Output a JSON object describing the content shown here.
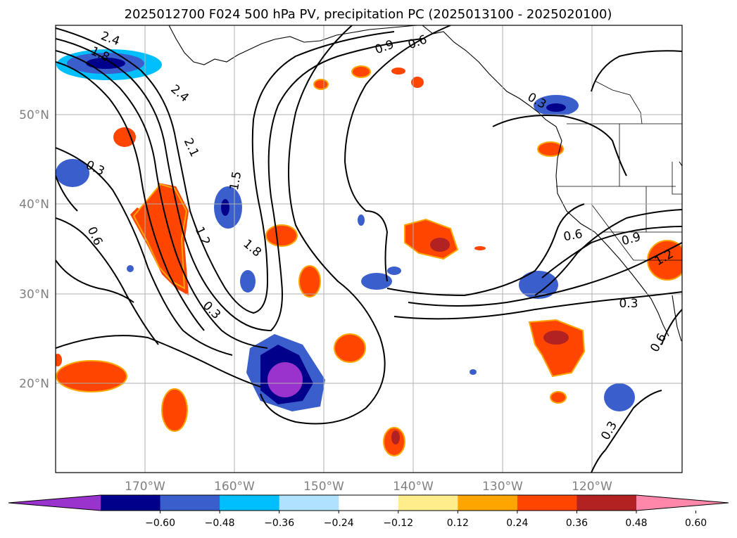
{
  "title": "2025012700 F024 500 hPa PV, precipitation PC (2025013100 - 2025020100)",
  "map": {
    "lat_ticks": [
      "50°N",
      "40°N",
      "30°N",
      "20°N"
    ],
    "lon_ticks": [
      "170°W",
      "160°W",
      "150°W",
      "140°W",
      "130°W",
      "120°W"
    ],
    "grid": true,
    "extent": {
      "lon_min": -180,
      "lon_max": -110,
      "lat_min": 10,
      "lat_max": 60
    }
  },
  "contour_labels": [
    "2.4",
    "1.8",
    "2.4",
    "2.1",
    "1.5",
    "1.2",
    "1.8",
    "0.3",
    "0.6",
    "0.3",
    "0.9",
    "0.6",
    "0.6",
    "0.9",
    "1.2",
    "0.3",
    "0.3",
    "0.3",
    "0.6"
  ],
  "colorbar": {
    "ticks": [
      "−0.60",
      "−0.48",
      "−0.36",
      "−0.24",
      "−0.12",
      "0.12",
      "0.24",
      "0.36",
      "0.48",
      "0.60"
    ],
    "colors": [
      "#9a32cd",
      "#00008b",
      "#3a5fcd",
      "#00bfff",
      "#b0e2ff",
      "#ffffff",
      "#ffec8b",
      "#ffa500",
      "#ff4500",
      "#b22222",
      "#ff88aa"
    ],
    "extend": "both"
  }
}
